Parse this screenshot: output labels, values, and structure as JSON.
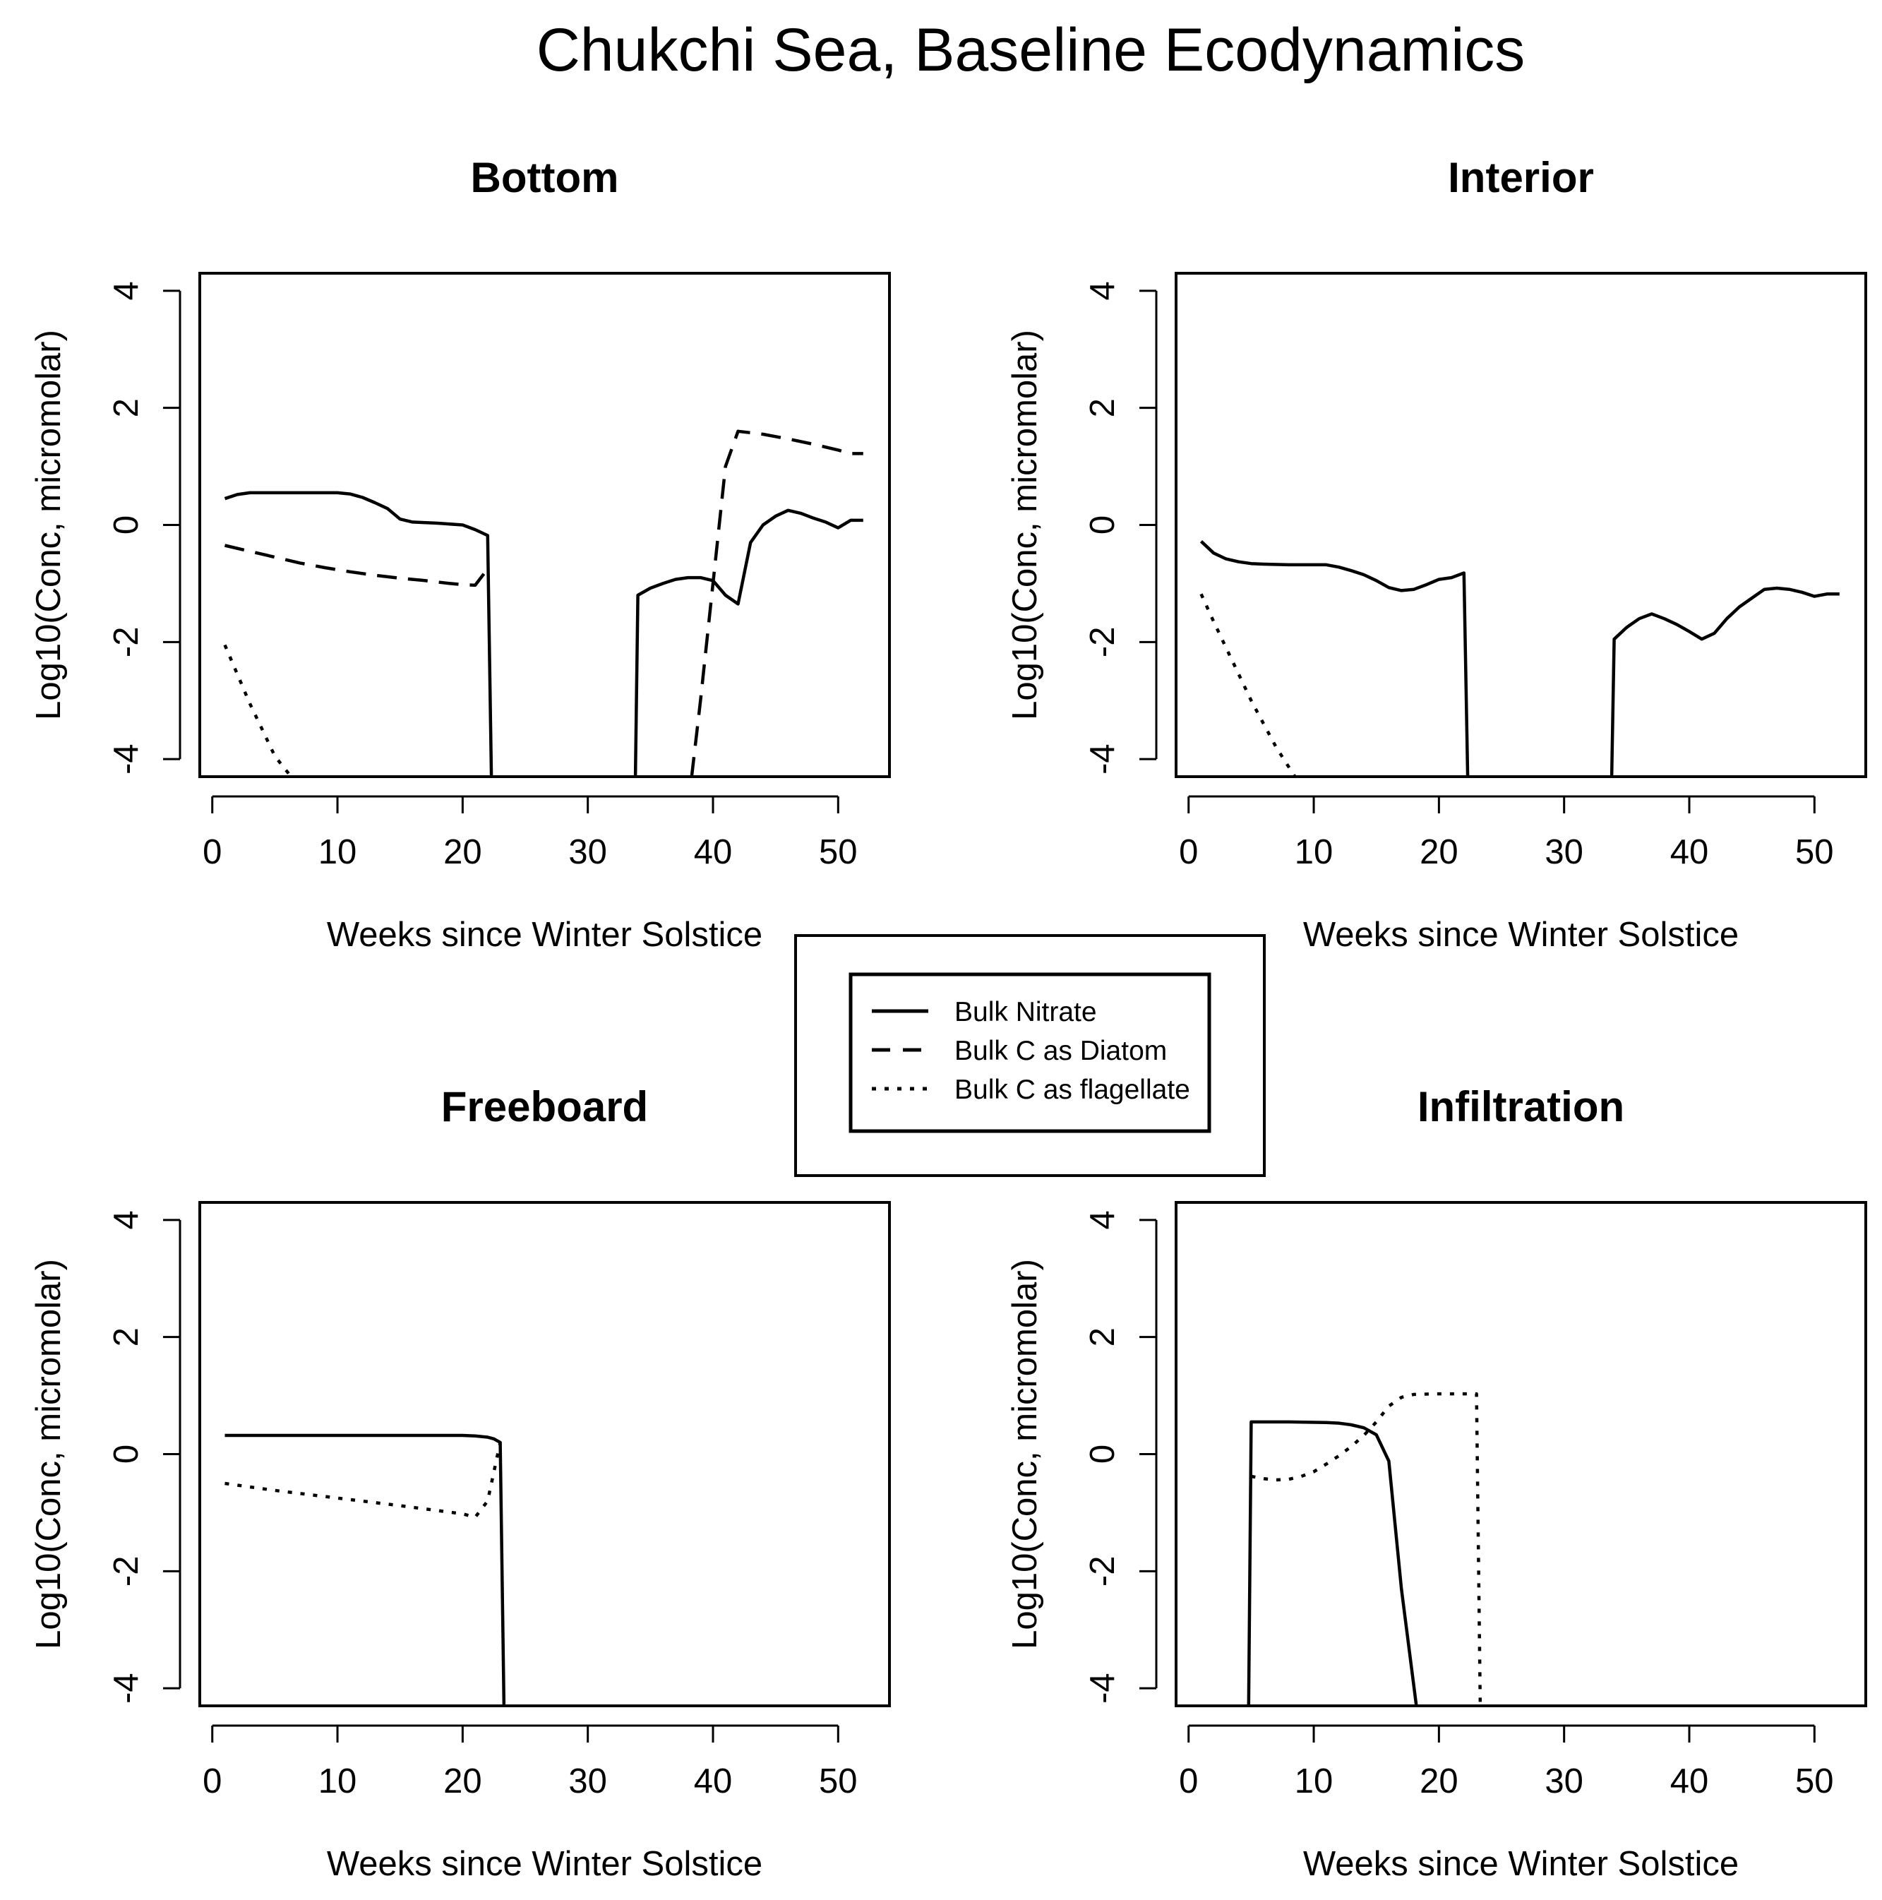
{
  "figure_title": "Chukchi Sea, Baseline Ecodynamics",
  "colors": {
    "ink": "#000000",
    "background": "#ffffff"
  },
  "legend": {
    "entries": [
      {
        "label": "Bulk Nitrate",
        "style": "solid"
      },
      {
        "label": "Bulk C as Diatom",
        "style": "dashed"
      },
      {
        "label": "Bulk C as flagellate",
        "style": "dotted"
      }
    ]
  },
  "chart_data": [
    {
      "type": "line",
      "title": "Bottom",
      "xlabel": "Weeks since Winter Solstice",
      "ylabel": "Log10(Conc, micromolar)",
      "xlim": [
        -1,
        54.1
      ],
      "ylim": [
        -4.3,
        4.3
      ],
      "xticks": [
        "0",
        "10",
        "20",
        "30",
        "40",
        "50"
      ],
      "yticks": [
        "-4",
        "-2",
        "0",
        "2",
        "4"
      ],
      "series": [
        {
          "name": "Bulk Nitrate",
          "style": "solid",
          "segments": [
            [
              [
                1,
                0.45
              ],
              [
                2,
                0.52
              ],
              [
                3,
                0.55
              ],
              [
                4,
                0.55
              ],
              [
                6,
                0.55
              ],
              [
                8,
                0.55
              ],
              [
                10,
                0.55
              ],
              [
                11,
                0.53
              ],
              [
                12,
                0.47
              ],
              [
                13,
                0.38
              ],
              [
                14,
                0.28
              ],
              [
                15,
                0.1
              ],
              [
                16,
                0.05
              ],
              [
                18,
                0.03
              ],
              [
                20,
                0.0
              ],
              [
                21,
                -0.08
              ],
              [
                22,
                -0.18
              ],
              [
                22.3,
                -4.3
              ]
            ],
            [
              [
                33.8,
                -4.3
              ],
              [
                34,
                -1.2
              ],
              [
                35,
                -1.08
              ],
              [
                36,
                -1.0
              ],
              [
                37,
                -0.93
              ],
              [
                38,
                -0.9
              ],
              [
                39,
                -0.9
              ],
              [
                40,
                -0.95
              ],
              [
                41,
                -1.2
              ],
              [
                42,
                -1.35
              ],
              [
                43,
                -0.3
              ],
              [
                44,
                0.0
              ],
              [
                45,
                0.15
              ],
              [
                46,
                0.25
              ],
              [
                47,
                0.2
              ],
              [
                48,
                0.12
              ],
              [
                49,
                0.05
              ],
              [
                50,
                -0.05
              ],
              [
                51,
                0.08
              ],
              [
                52,
                0.08
              ]
            ]
          ]
        },
        {
          "name": "Bulk C as Diatom",
          "style": "dashed",
          "segments": [
            [
              [
                1,
                -0.35
              ],
              [
                3,
                -0.45
              ],
              [
                5,
                -0.55
              ],
              [
                7,
                -0.65
              ],
              [
                9,
                -0.73
              ],
              [
                11,
                -0.8
              ],
              [
                13,
                -0.86
              ],
              [
                15,
                -0.91
              ],
              [
                17,
                -0.95
              ],
              [
                19,
                -1.0
              ],
              [
                20,
                -1.02
              ],
              [
                21,
                -1.03
              ],
              [
                22,
                -0.75
              ]
            ],
            [
              [
                38.3,
                -4.3
              ],
              [
                39,
                -3.0
              ],
              [
                40,
                -1.0
              ],
              [
                41,
                1.0
              ],
              [
                42,
                1.6
              ],
              [
                44,
                1.55
              ],
              [
                46,
                1.47
              ],
              [
                48,
                1.38
              ],
              [
                50,
                1.28
              ],
              [
                51,
                1.22
              ],
              [
                52,
                1.22
              ]
            ]
          ]
        },
        {
          "name": "Bulk C as flagellate",
          "style": "dotted",
          "segments": [
            [
              [
                1,
                -2.05
              ],
              [
                2,
                -2.55
              ],
              [
                3,
                -3.05
              ],
              [
                4,
                -3.5
              ],
              [
                5,
                -3.95
              ],
              [
                6.3,
                -4.3
              ]
            ]
          ]
        }
      ]
    },
    {
      "type": "line",
      "title": "Interior",
      "xlabel": "Weeks since Winter Solstice",
      "ylabel": "Log10(Conc, micromolar)",
      "xlim": [
        -1,
        54.1
      ],
      "ylim": [
        -4.3,
        4.3
      ],
      "xticks": [
        "0",
        "10",
        "20",
        "30",
        "40",
        "50"
      ],
      "yticks": [
        "-4",
        "-2",
        "0",
        "2",
        "4"
      ],
      "series": [
        {
          "name": "Bulk Nitrate",
          "style": "solid",
          "segments": [
            [
              [
                1,
                -0.28
              ],
              [
                2,
                -0.48
              ],
              [
                3,
                -0.58
              ],
              [
                4,
                -0.63
              ],
              [
                5,
                -0.66
              ],
              [
                6,
                -0.67
              ],
              [
                8,
                -0.68
              ],
              [
                10,
                -0.68
              ],
              [
                11,
                -0.68
              ],
              [
                12,
                -0.72
              ],
              [
                13,
                -0.78
              ],
              [
                14,
                -0.85
              ],
              [
                15,
                -0.95
              ],
              [
                16,
                -1.07
              ],
              [
                17,
                -1.12
              ],
              [
                18,
                -1.1
              ],
              [
                19,
                -1.02
              ],
              [
                20,
                -0.93
              ],
              [
                21,
                -0.9
              ],
              [
                22,
                -0.82
              ],
              [
                22.3,
                -4.3
              ]
            ],
            [
              [
                33.8,
                -4.3
              ],
              [
                34,
                -1.95
              ],
              [
                35,
                -1.75
              ],
              [
                36,
                -1.6
              ],
              [
                37,
                -1.52
              ],
              [
                38,
                -1.6
              ],
              [
                39,
                -1.7
              ],
              [
                40,
                -1.82
              ],
              [
                41,
                -1.95
              ],
              [
                42,
                -1.85
              ],
              [
                43,
                -1.6
              ],
              [
                44,
                -1.4
              ],
              [
                45,
                -1.25
              ],
              [
                46,
                -1.1
              ],
              [
                47,
                -1.08
              ],
              [
                48,
                -1.1
              ],
              [
                49,
                -1.15
              ],
              [
                50,
                -1.22
              ],
              [
                51,
                -1.18
              ],
              [
                52,
                -1.18
              ]
            ]
          ]
        },
        {
          "name": "Bulk C as flagellate",
          "style": "dotted",
          "segments": [
            [
              [
                1,
                -1.18
              ],
              [
                2,
                -1.65
              ],
              [
                3,
                -2.1
              ],
              [
                4,
                -2.55
              ],
              [
                5,
                -3.0
              ],
              [
                6,
                -3.4
              ],
              [
                7,
                -3.8
              ],
              [
                8.5,
                -4.3
              ]
            ]
          ]
        }
      ]
    },
    {
      "type": "line",
      "title": "Freeboard",
      "xlabel": "Weeks since Winter Solstice",
      "ylabel": "Log10(Conc, micromolar)",
      "xlim": [
        -1,
        54.1
      ],
      "ylim": [
        -4.3,
        4.3
      ],
      "xticks": [
        "0",
        "10",
        "20",
        "30",
        "40",
        "50"
      ],
      "yticks": [
        "-4",
        "-2",
        "0",
        "2",
        "4"
      ],
      "series": [
        {
          "name": "Bulk Nitrate",
          "style": "solid",
          "segments": [
            [
              [
                1,
                0.32
              ],
              [
                5,
                0.32
              ],
              [
                10,
                0.32
              ],
              [
                15,
                0.32
              ],
              [
                20,
                0.32
              ],
              [
                21,
                0.31
              ],
              [
                22,
                0.29
              ],
              [
                22.5,
                0.26
              ],
              [
                23,
                0.2
              ],
              [
                23.3,
                -4.3
              ]
            ]
          ]
        },
        {
          "name": "Bulk C as flagellate",
          "style": "dotted",
          "segments": [
            [
              [
                1,
                -0.5
              ],
              [
                5,
                -0.62
              ],
              [
                10,
                -0.75
              ],
              [
                15,
                -0.88
              ],
              [
                20,
                -1.02
              ],
              [
                21,
                -1.08
              ],
              [
                22,
                -0.8
              ],
              [
                23,
                0.2
              ]
            ]
          ]
        }
      ]
    },
    {
      "type": "line",
      "title": "Infiltration",
      "xlabel": "Weeks since Winter Solstice",
      "ylabel": "Log10(Conc, micromolar)",
      "xlim": [
        -1,
        54.1
      ],
      "ylim": [
        -4.3,
        4.3
      ],
      "xticks": [
        "0",
        "10",
        "20",
        "30",
        "40",
        "50"
      ],
      "yticks": [
        "-4",
        "-2",
        "0",
        "2",
        "4"
      ],
      "series": [
        {
          "name": "Bulk Nitrate",
          "style": "solid",
          "segments": [
            [
              [
                4.8,
                -4.3
              ],
              [
                5,
                0.55
              ],
              [
                8,
                0.55
              ],
              [
                11,
                0.54
              ],
              [
                12,
                0.53
              ],
              [
                13,
                0.5
              ],
              [
                14,
                0.45
              ],
              [
                15,
                0.33
              ],
              [
                16,
                -0.12
              ],
              [
                17,
                -2.3
              ],
              [
                18.2,
                -4.3
              ]
            ]
          ]
        },
        {
          "name": "Bulk C as flagellate",
          "style": "dotted",
          "segments": [
            [
              [
                5,
                -0.38
              ],
              [
                6,
                -0.42
              ],
              [
                7,
                -0.44
              ],
              [
                8,
                -0.43
              ],
              [
                9,
                -0.38
              ],
              [
                10,
                -0.3
              ],
              [
                11,
                -0.17
              ],
              [
                12,
                -0.03
              ],
              [
                13,
                0.13
              ],
              [
                14,
                0.32
              ],
              [
                15,
                0.55
              ],
              [
                16,
                0.82
              ],
              [
                17,
                0.97
              ],
              [
                18,
                1.02
              ],
              [
                20,
                1.03
              ],
              [
                22,
                1.03
              ],
              [
                23,
                1.03
              ],
              [
                23.3,
                -4.3
              ]
            ]
          ]
        }
      ]
    }
  ]
}
